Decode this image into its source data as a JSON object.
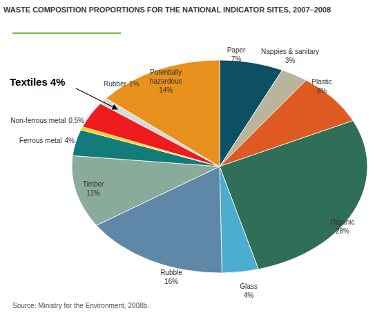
{
  "chart_data": {
    "type": "pie",
    "title": "WASTE COMPOSITION PROPORTIONS FOR THE NATIONAL INDICATOR SITES, 2007–2008",
    "categories": [
      "Paper",
      "Nappies & sanitary",
      "Plastic",
      "Organic",
      "Glass",
      "Rubble",
      "Timber",
      "Ferrous metal",
      "Non-ferrous metal",
      "Textiles",
      "Rubber",
      "Potentially hazardous"
    ],
    "values": [
      7,
      3,
      8,
      28,
      4,
      16,
      11,
      4,
      0.5,
      4,
      1,
      14
    ],
    "value_labels": [
      "7%",
      "3%",
      "8%",
      "28%",
      "4%",
      "16%",
      "11%",
      "4%",
      "0.5%",
      "4%",
      "1%",
      "14%"
    ],
    "colors": [
      "#0d4f63",
      "#b9b59c",
      "#df5a22",
      "#2f6f57",
      "#4badd0",
      "#5f87a8",
      "#8aab9b",
      "#137b78",
      "#f2d200",
      "#ee1c1c",
      "#d9d9d9",
      "#e8911e"
    ],
    "data_labels": true,
    "source": "Source: Ministry for the Environment, 2008b."
  }
}
